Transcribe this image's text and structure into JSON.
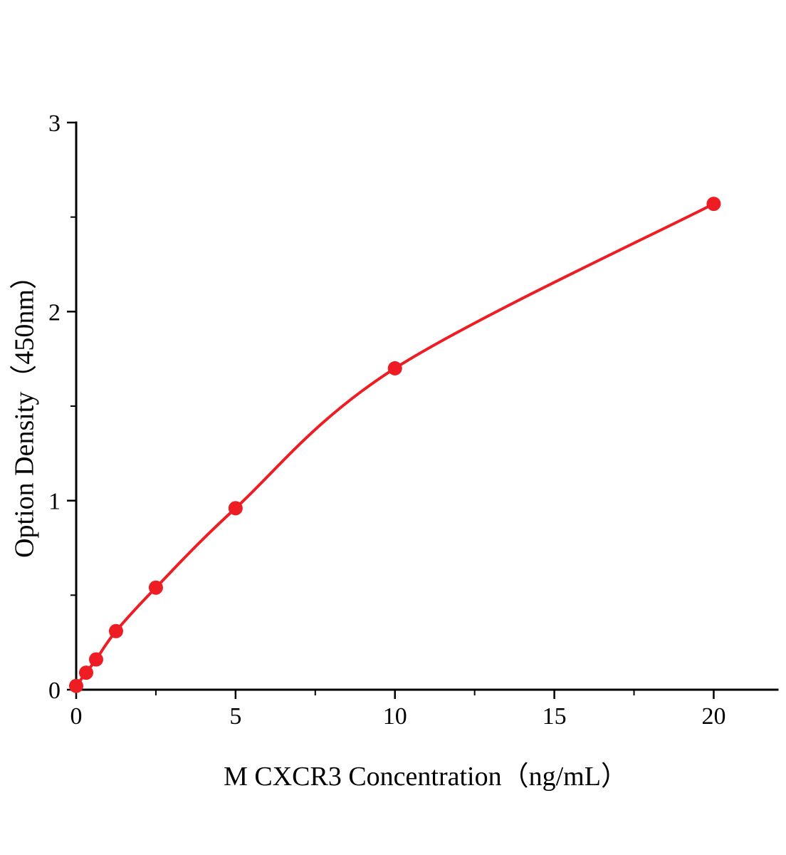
{
  "chart_data": {
    "type": "scatter",
    "title": "",
    "xlabel": "M CXCR3 Concentration（ng/mL）",
    "ylabel": "Option Density（450nm）",
    "x": [
      0,
      0.3125,
      0.625,
      1.25,
      2.5,
      5,
      10,
      20
    ],
    "y": [
      0.02,
      0.09,
      0.16,
      0.31,
      0.54,
      0.96,
      1.7,
      2.57
    ],
    "xlim": [
      0,
      22
    ],
    "ylim": [
      0,
      3
    ],
    "x_major_ticks": [
      0,
      5,
      10,
      15,
      20
    ],
    "x_minor_ticks": [
      2.5,
      7.5,
      12.5,
      17.5
    ],
    "y_major_ticks": [
      0,
      1,
      2,
      3
    ],
    "y_minor_ticks": [
      0.5,
      1.5,
      2.5
    ],
    "legend": [],
    "grid": false,
    "line_color": "#ee1c23",
    "marker_color": "#ee1c23",
    "axis_color": "#000000",
    "marker_radius": 10
  }
}
